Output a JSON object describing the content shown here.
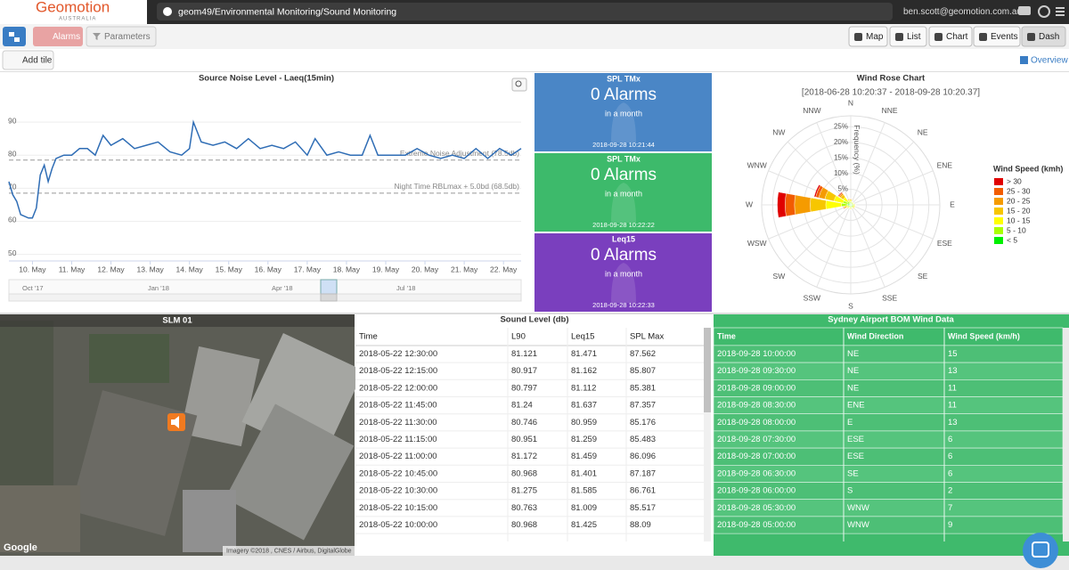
{
  "header": {
    "logo": "Geomotion",
    "logo_sub": "AUSTRALIA",
    "path": "geom49/Environmental Monitoring/Sound Monitoring",
    "user": "ben.scott@geomotion.com.au"
  },
  "toolbar": {
    "alarms": "Alarms",
    "parameters": "Parameters",
    "views": [
      "Map",
      "List",
      "Chart",
      "Events",
      "Dash"
    ],
    "add_tile": "Add tile",
    "overview": "Overview"
  },
  "line_chart": {
    "type": "line",
    "title": "Source Noise Level - Laeq(15min)",
    "color": "#2f6db5",
    "xlim": [
      9.4,
      22.45
    ],
    "xticks": [
      {
        "value": 10,
        "label": "10. May"
      },
      {
        "value": 11,
        "label": "11. May"
      },
      {
        "value": 12,
        "label": "12. May"
      },
      {
        "value": 13,
        "label": "13. May"
      },
      {
        "value": 14,
        "label": "14. May"
      },
      {
        "value": 15,
        "label": "15. May"
      },
      {
        "value": 16,
        "label": "16. May"
      },
      {
        "value": 17,
        "label": "17. May"
      },
      {
        "value": 18,
        "label": "18. May"
      },
      {
        "value": 19,
        "label": "19. May"
      },
      {
        "value": 20,
        "label": "20. May"
      },
      {
        "value": 21,
        "label": "21. May"
      },
      {
        "value": 22,
        "label": "22. May"
      }
    ],
    "ylim": [
      48,
      100
    ],
    "yticks": [
      50,
      60,
      70,
      80,
      90
    ],
    "grid": true,
    "x": [
      9.4,
      9.5,
      9.6,
      9.7,
      9.9,
      10,
      10.1,
      10.2,
      10.3,
      10.4,
      10.5,
      10.6,
      10.8,
      11,
      11.2,
      11.4,
      11.6,
      11.8,
      12,
      12.3,
      12.6,
      12.9,
      13.2,
      13.5,
      13.8,
      14,
      14.1,
      14.3,
      14.6,
      14.9,
      15.2,
      15.5,
      15.8,
      16.1,
      16.4,
      16.7,
      17,
      17.2,
      17.5,
      17.8,
      18.1,
      18.4,
      18.6,
      18.8,
      19.1,
      19.5,
      19.8,
      20.1,
      20.4,
      20.7,
      21,
      21.3,
      21.6,
      21.9,
      22.2,
      22.45
    ],
    "values": [
      72,
      68,
      66,
      62,
      61,
      61,
      64,
      74,
      77,
      72,
      76,
      79,
      80,
      80,
      82,
      82,
      80,
      86,
      83,
      85,
      82,
      83,
      84,
      81,
      80,
      82,
      90,
      84,
      83,
      84,
      82,
      85,
      82,
      83,
      82,
      84,
      80,
      85,
      80,
      81,
      80,
      80,
      86,
      80,
      80,
      80,
      82,
      80,
      79,
      80,
      79,
      82,
      79,
      82,
      80,
      82
    ],
    "plot_lines": [
      {
        "value": 78.5,
        "label": "Extreme Noise Adjustment (78.5db)"
      },
      {
        "value": 68.5,
        "label": "Night Time RBLmax + 5.0bd (68.5db)"
      }
    ],
    "navigator_labels": [
      "Oct '17",
      "Jan '18",
      "Apr '18",
      "Jul '18"
    ]
  },
  "alarm_tiles": [
    {
      "title": "SPL TMx",
      "value": "0 Alarms",
      "sub": "in a month",
      "time": "2018-09-28 10:21:44",
      "color": "#4a86c6"
    },
    {
      "title": "SPL TMx",
      "value": "0 Alarms",
      "sub": "in a month",
      "time": "2018-09-28 10:22:22",
      "color": "#3dba6b"
    },
    {
      "title": "Leq15",
      "value": "0 Alarms",
      "sub": "in a month",
      "time": "2018-09-28 10:22:33",
      "color": "#7a3fbe"
    }
  ],
  "wind_rose": {
    "type": "wind-rose",
    "title": "Wind Rose Chart",
    "subtitle": "[2018-06-28 10:20:37 - 2018-09-28 10:20.37]",
    "axis_label": "Frequency (%)",
    "directions": [
      "N",
      "NNE",
      "NE",
      "ENE",
      "E",
      "ESE",
      "SE",
      "SSE",
      "S",
      "SSW",
      "SW",
      "WSW",
      "W",
      "WNW",
      "NW",
      "NNW"
    ],
    "rlim": [
      0,
      28.5
    ],
    "rticks": [
      {
        "value": 5,
        "label": "5%"
      },
      {
        "value": 10,
        "label": "10%"
      },
      {
        "value": 15,
        "label": "15%"
      },
      {
        "value": 20,
        "label": "20%"
      },
      {
        "value": 25,
        "label": "25%"
      }
    ],
    "legend_title": "Wind Speed (kmh)",
    "series": [
      {
        "name": "> 30",
        "color": "#e00000",
        "values": [
          0,
          0,
          0,
          0,
          0,
          0,
          0,
          0,
          0,
          0,
          0,
          0.1,
          2.5,
          0.5,
          0.2,
          0
        ]
      },
      {
        "name": "25 - 30",
        "color": "#f25c00",
        "values": [
          0.1,
          0,
          0,
          0,
          0,
          0,
          0,
          0,
          0,
          0,
          0,
          0.2,
          3,
          1,
          0.3,
          0.1
        ]
      },
      {
        "name": "20 - 25",
        "color": "#f59b00",
        "values": [
          0.2,
          0,
          0,
          0,
          0.1,
          0.1,
          0.1,
          0,
          0.1,
          0,
          0.1,
          0.3,
          5,
          2,
          0.5,
          0.2
        ]
      },
      {
        "name": "15 - 20",
        "color": "#f7c600",
        "values": [
          0.3,
          0.1,
          0.1,
          0.1,
          0.2,
          0.2,
          0.2,
          0.1,
          0.2,
          0.1,
          0.2,
          0.5,
          5,
          3,
          1,
          0.3
        ]
      },
      {
        "name": "10 - 15",
        "color": "#ffff00",
        "values": [
          0.5,
          0.2,
          0.2,
          0.2,
          0.3,
          0.3,
          0.3,
          0.2,
          0.3,
          0.2,
          0.3,
          0.5,
          5,
          3,
          1.5,
          0.5
        ]
      },
      {
        "name": "5 - 10",
        "color": "#aaff00",
        "values": [
          0.5,
          0.3,
          0.3,
          0.3,
          0.5,
          0.5,
          0.5,
          0.3,
          0.5,
          0.3,
          0.5,
          0.5,
          2,
          1.5,
          1,
          0.5
        ]
      },
      {
        "name": "< 5",
        "color": "#00f000",
        "values": [
          0.5,
          0.5,
          0.5,
          0.5,
          0.5,
          0.5,
          0.5,
          0.5,
          0.5,
          0.5,
          0.5,
          0.5,
          1,
          1,
          0.5,
          0.5
        ]
      }
    ]
  },
  "map_tile": {
    "title": "SLM 01",
    "google": "Google",
    "attribution": "Imagery ©2018 , CNES / Airbus, DigitalGlobe"
  },
  "sound_table": {
    "title": "Sound Level (db)",
    "columns": [
      "Time",
      "L90",
      "Leq15",
      "SPL Max"
    ],
    "rows": [
      [
        "2018-05-22 12:30:00",
        81.121,
        81.471,
        87.562
      ],
      [
        "2018-05-22 12:15:00",
        80.917,
        81.162,
        85.807
      ],
      [
        "2018-05-22 12:00:00",
        80.797,
        81.112,
        85.381
      ],
      [
        "2018-05-22 11:45:00",
        81.24,
        81.637,
        87.357
      ],
      [
        "2018-05-22 11:30:00",
        80.746,
        80.959,
        85.176
      ],
      [
        "2018-05-22 11:15:00",
        80.951,
        81.259,
        85.483
      ],
      [
        "2018-05-22 11:00:00",
        81.172,
        81.459,
        86.096
      ],
      [
        "2018-05-22 10:45:00",
        80.968,
        81.401,
        87.187
      ],
      [
        "2018-05-22 10:30:00",
        81.275,
        81.585,
        86.761
      ],
      [
        "2018-05-22 10:15:00",
        80.763,
        81.009,
        85.517
      ],
      [
        "2018-05-22 10:00:00",
        80.968,
        81.425,
        88.09
      ]
    ]
  },
  "wind_table": {
    "title": "Sydney Airport BOM Wind Data",
    "columns": [
      "Time",
      "Wind Direction",
      "Wind Speed (km/h)"
    ],
    "rows": [
      [
        "2018-09-28 10:00:00",
        "NE",
        15
      ],
      [
        "2018-09-28 09:30:00",
        "NE",
        13
      ],
      [
        "2018-09-28 09:00:00",
        "NE",
        11
      ],
      [
        "2018-09-28 08:30:00",
        "ENE",
        11
      ],
      [
        "2018-09-28 08:00:00",
        "E",
        13
      ],
      [
        "2018-09-28 07:30:00",
        "ESE",
        6
      ],
      [
        "2018-09-28 07:00:00",
        "ESE",
        6
      ],
      [
        "2018-09-28 06:30:00",
        "SE",
        6
      ],
      [
        "2018-09-28 06:00:00",
        "S",
        2
      ],
      [
        "2018-09-28 05:30:00",
        "WNW",
        7
      ],
      [
        "2018-09-28 05:00:00",
        "WNW",
        9
      ]
    ]
  }
}
